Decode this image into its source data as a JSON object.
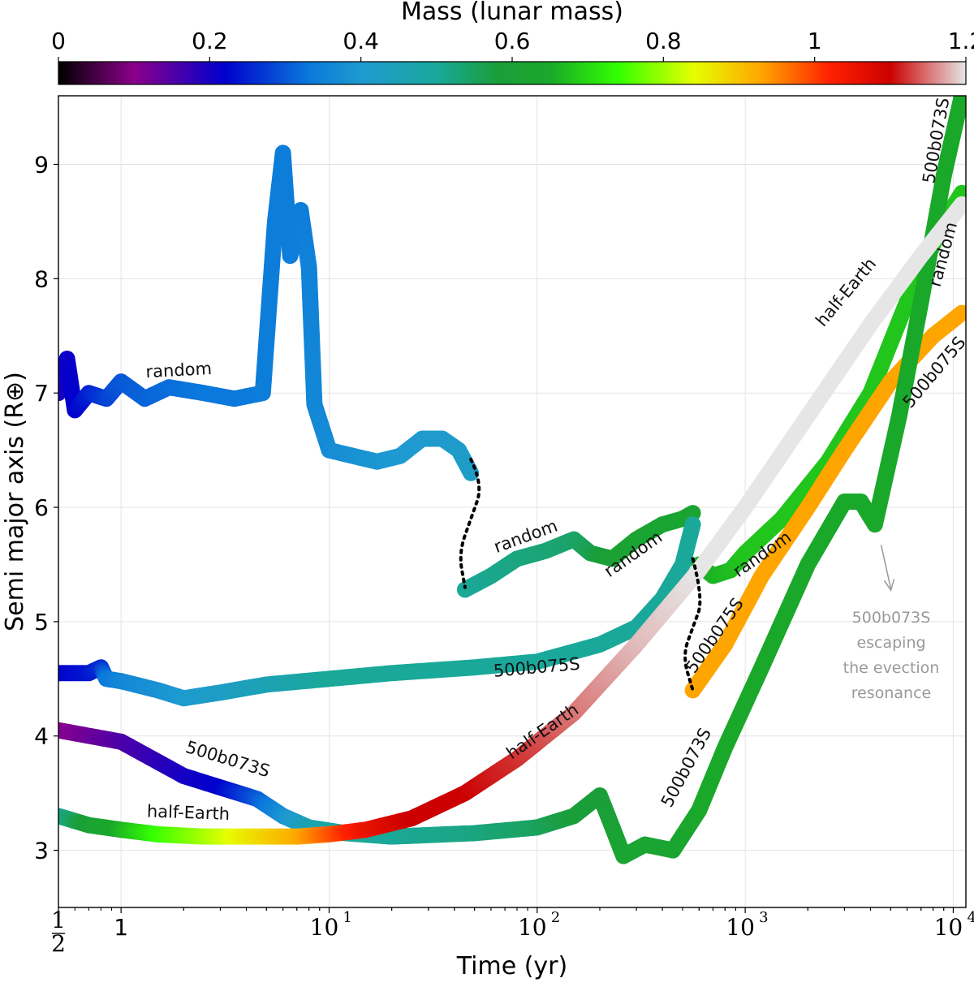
{
  "chart_data": {
    "type": "scatter",
    "title": "",
    "xlabel": "Time (yr)",
    "ylabel": "Semi major axis (R⊕)",
    "xscale": "log",
    "xlim": [
      0.5,
      11500
    ],
    "ylim": [
      2.5,
      9.6
    ],
    "grid": true,
    "x_tick_labels": [
      {
        "value": 0.5,
        "label": "1/2",
        "num": "1",
        "den": "2"
      },
      {
        "value": 1,
        "label": "1"
      },
      {
        "value": 10,
        "label": "10",
        "base": "10",
        "exp": "1"
      },
      {
        "value": 100,
        "label": "10",
        "base": "10",
        "exp": "2"
      },
      {
        "value": 1000,
        "label": "10",
        "base": "10",
        "exp": "3"
      },
      {
        "value": 10000,
        "label": "10",
        "base": "10",
        "exp": "4"
      }
    ],
    "y_ticks": [
      3,
      4,
      5,
      6,
      7,
      8,
      9
    ],
    "colorbar": {
      "label": "Mass (lunar mass)",
      "range": [
        0,
        1.2
      ],
      "ticks": [
        "0",
        "0.2",
        "0.4",
        "0.6",
        "0.8",
        "1",
        "1.2"
      ],
      "colormap": [
        {
          "v": 0.0,
          "c": "#000000"
        },
        {
          "v": 0.1,
          "c": "#8b008b"
        },
        {
          "v": 0.22,
          "c": "#0000cd"
        },
        {
          "v": 0.33,
          "c": "#0a78dc"
        },
        {
          "v": 0.4,
          "c": "#1e9ad0"
        },
        {
          "v": 0.5,
          "c": "#1aa89a"
        },
        {
          "v": 0.58,
          "c": "#1a9e3a"
        },
        {
          "v": 0.65,
          "c": "#1aa82a"
        },
        {
          "v": 0.74,
          "c": "#33ff00"
        },
        {
          "v": 0.84,
          "c": "#e6ff00"
        },
        {
          "v": 0.93,
          "c": "#ffa500"
        },
        {
          "v": 1.02,
          "c": "#ff2000"
        },
        {
          "v": 1.1,
          "c": "#cc0000"
        },
        {
          "v": 1.2,
          "c": "#e6e6e6"
        }
      ]
    },
    "series": [
      {
        "name": "random",
        "segments": [
          {
            "points": [
              [
                0.5,
                7.0
              ],
              [
                0.55,
                7.3
              ],
              [
                0.6,
                6.85
              ],
              [
                0.7,
                7.0
              ],
              [
                0.85,
                6.95
              ],
              [
                1.0,
                7.1
              ],
              [
                1.3,
                6.95
              ],
              [
                1.7,
                7.05
              ],
              [
                2.5,
                7.0
              ],
              [
                3.5,
                6.95
              ],
              [
                4.8,
                7.0
              ],
              [
                5.5,
                8.5
              ],
              [
                6.0,
                9.1
              ],
              [
                6.5,
                8.2
              ],
              [
                7.3,
                8.6
              ],
              [
                8.0,
                8.1
              ],
              [
                8.5,
                6.9
              ],
              [
                10,
                6.5
              ],
              [
                13,
                6.45
              ],
              [
                17,
                6.4
              ],
              [
                22,
                6.45
              ],
              [
                28,
                6.6
              ],
              [
                35,
                6.6
              ],
              [
                42,
                6.5
              ],
              [
                48,
                6.3
              ]
            ],
            "masses": [
              0.2,
              0.21,
              0.22,
              0.25,
              0.28,
              0.3,
              0.31,
              0.32,
              0.33,
              0.33,
              0.34,
              0.34,
              0.34,
              0.34,
              0.34,
              0.35,
              0.36,
              0.37,
              0.38,
              0.39,
              0.4,
              0.4,
              0.41,
              0.41,
              0.42
            ]
          },
          {
            "points": [
              [
                45,
                5.28
              ],
              [
                60,
                5.4
              ],
              [
                80,
                5.55
              ],
              [
                110,
                5.62
              ],
              [
                150,
                5.72
              ],
              [
                180,
                5.6
              ],
              [
                230,
                5.55
              ],
              [
                300,
                5.72
              ],
              [
                400,
                5.85
              ],
              [
                500,
                5.9
              ],
              [
                560,
                5.95
              ]
            ],
            "masses": [
              0.5,
              0.51,
              0.52,
              0.53,
              0.54,
              0.56,
              0.6,
              0.62,
              0.62,
              0.62,
              0.62
            ]
          },
          {
            "points": [
              [
                600,
                5.5
              ],
              [
                700,
                5.4
              ],
              [
                850,
                5.45
              ],
              [
                1000,
                5.6
              ],
              [
                1500,
                5.9
              ],
              [
                2500,
                6.4
              ],
              [
                4000,
                7.0
              ],
              [
                6000,
                7.8
              ],
              [
                9000,
                8.5
              ],
              [
                11000,
                8.75
              ]
            ],
            "masses": [
              0.65,
              0.66,
              0.67,
              0.68,
              0.68,
              0.68,
              0.68,
              0.68,
              0.68,
              0.68
            ]
          }
        ],
        "labels": [
          {
            "text": "random"
          },
          {
            "text": "random"
          },
          {
            "text": "random"
          },
          {
            "text": "random"
          },
          {
            "text": "random"
          }
        ]
      },
      {
        "name": "500b075S",
        "segments": [
          {
            "points": [
              [
                0.5,
                4.55
              ],
              [
                0.7,
                4.55
              ],
              [
                0.8,
                4.6
              ],
              [
                0.85,
                4.5
              ],
              [
                1.0,
                4.48
              ],
              [
                1.5,
                4.4
              ],
              [
                2.0,
                4.33
              ],
              [
                3.0,
                4.38
              ],
              [
                5.0,
                4.45
              ],
              [
                10,
                4.5
              ],
              [
                20,
                4.55
              ],
              [
                50,
                4.6
              ],
              [
                100,
                4.65
              ],
              [
                200,
                4.8
              ],
              [
                300,
                4.95
              ],
              [
                400,
                5.2
              ],
              [
                500,
                5.5
              ],
              [
                560,
                5.85
              ]
            ],
            "masses": [
              0.22,
              0.24,
              0.26,
              0.33,
              0.36,
              0.38,
              0.4,
              0.42,
              0.45,
              0.5,
              0.5,
              0.5,
              0.5,
              0.5,
              0.5,
              0.5,
              0.5,
              0.5
            ]
          },
          {
            "points": [
              [
                560,
                4.4
              ],
              [
                800,
                4.8
              ],
              [
                1200,
                5.4
              ],
              [
                2000,
                6.0
              ],
              [
                3000,
                6.5
              ],
              [
                5000,
                7.1
              ],
              [
                8000,
                7.5
              ],
              [
                11000,
                7.7
              ]
            ],
            "masses": [
              0.93,
              0.93,
              0.93,
              0.93,
              0.93,
              0.93,
              0.93,
              0.93
            ]
          }
        ],
        "labels": [
          {
            "text": "500b075S"
          },
          {
            "text": "500b075S"
          },
          {
            "text": "500b075S"
          }
        ]
      },
      {
        "name": "500b073S",
        "segments": [
          {
            "points": [
              [
                0.5,
                4.05
              ],
              [
                1.0,
                3.95
              ],
              [
                2.0,
                3.65
              ],
              [
                3.0,
                3.55
              ],
              [
                4.5,
                3.45
              ],
              [
                6.0,
                3.3
              ],
              [
                8.0,
                3.2
              ],
              [
                12,
                3.15
              ],
              [
                20,
                3.12
              ],
              [
                50,
                3.15
              ],
              [
                100,
                3.2
              ],
              [
                150,
                3.3
              ],
              [
                200,
                3.48
              ],
              [
                230,
                3.2
              ],
              [
                260,
                2.95
              ],
              [
                330,
                3.05
              ],
              [
                450,
                3.0
              ],
              [
                600,
                3.35
              ],
              [
                800,
                3.9
              ],
              [
                1200,
                4.6
              ],
              [
                2000,
                5.5
              ],
              [
                3000,
                6.05
              ],
              [
                3600,
                6.05
              ],
              [
                4200,
                5.85
              ],
              [
                5500,
                6.8
              ],
              [
                7000,
                7.8
              ],
              [
                9000,
                8.9
              ],
              [
                11000,
                9.6
              ]
            ],
            "masses": [
              0.1,
              0.15,
              0.2,
              0.22,
              0.3,
              0.38,
              0.45,
              0.5,
              0.5,
              0.52,
              0.55,
              0.58,
              0.58,
              0.6,
              0.62,
              0.62,
              0.62,
              0.65,
              0.65,
              0.65,
              0.65,
              0.65,
              0.65,
              0.65,
              0.65,
              0.65,
              0.65,
              0.65
            ]
          }
        ],
        "labels": [
          {
            "text": "500b073S"
          },
          {
            "text": "500b073S"
          },
          {
            "text": "500b073S"
          }
        ]
      },
      {
        "name": "half-Earth",
        "segments": [
          {
            "points": [
              [
                0.5,
                3.3
              ],
              [
                0.7,
                3.22
              ],
              [
                1.0,
                3.18
              ],
              [
                1.5,
                3.14
              ],
              [
                2.5,
                3.12
              ],
              [
                4.0,
                3.12
              ],
              [
                7.0,
                3.12
              ],
              [
                10,
                3.14
              ],
              [
                15,
                3.18
              ],
              [
                25,
                3.28
              ],
              [
                45,
                3.5
              ],
              [
                80,
                3.8
              ],
              [
                150,
                4.2
              ],
              [
                300,
                4.8
              ],
              [
                600,
                5.45
              ],
              [
                1000,
                6.0
              ],
              [
                2000,
                6.8
              ],
              [
                4000,
                7.6
              ],
              [
                7000,
                8.2
              ],
              [
                11000,
                8.65
              ]
            ],
            "masses": [
              0.5,
              0.6,
              0.66,
              0.74,
              0.8,
              0.86,
              0.92,
              0.98,
              1.05,
              1.1,
              1.1,
              1.12,
              1.15,
              1.18,
              1.2,
              1.2,
              1.2,
              1.2,
              1.2,
              1.2
            ]
          }
        ],
        "labels": [
          {
            "text": "half-Earth"
          },
          {
            "text": "half-Earth"
          },
          {
            "text": "half-Earth"
          }
        ]
      }
    ],
    "connectors": [
      {
        "style": "dotted",
        "points": [
          [
            48,
            6.42
          ],
          [
            55,
            6.2
          ],
          [
            48,
            5.9
          ],
          [
            42,
            5.6
          ],
          [
            45,
            5.3
          ]
        ]
      },
      {
        "style": "dotted",
        "points": [
          [
            560,
            5.55
          ],
          [
            630,
            5.2
          ],
          [
            560,
            4.95
          ],
          [
            500,
            4.7
          ],
          [
            560,
            4.4
          ]
        ]
      }
    ],
    "annotations": [
      {
        "lines": [
          "500b073S",
          "escaping",
          "the evection",
          "resonance"
        ],
        "arrow_to": [
          4500,
          5.7
        ]
      }
    ]
  }
}
